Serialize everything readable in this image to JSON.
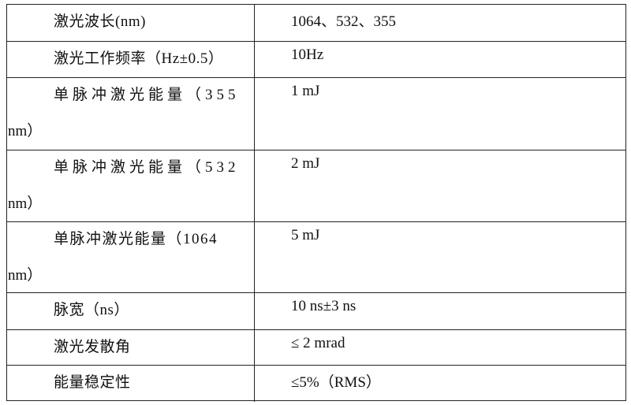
{
  "table": {
    "rows": [
      {
        "param": "激光波长(nm)",
        "param_cont": "",
        "value": "1064、532、355"
      },
      {
        "param": "激光工作频率（Hz±0.5）",
        "param_cont": "",
        "value": "10Hz"
      },
      {
        "param": "单脉冲激光能量（355",
        "param_cont": "nm）",
        "value": "1 mJ"
      },
      {
        "param": "单脉冲激光能量（532",
        "param_cont": "nm）",
        "value": "2 mJ"
      },
      {
        "param": "单脉冲激光能量（1064",
        "param_cont": "nm）",
        "value": "5 mJ"
      },
      {
        "param": "脉宽（ns）",
        "param_cont": "",
        "value": "10 ns±3 ns"
      },
      {
        "param": "激光发散角",
        "param_cont": "",
        "value": "≤ 2 mrad"
      },
      {
        "param": "能量稳定性",
        "param_cont": "",
        "value": "≤5%（RMS）"
      }
    ]
  }
}
